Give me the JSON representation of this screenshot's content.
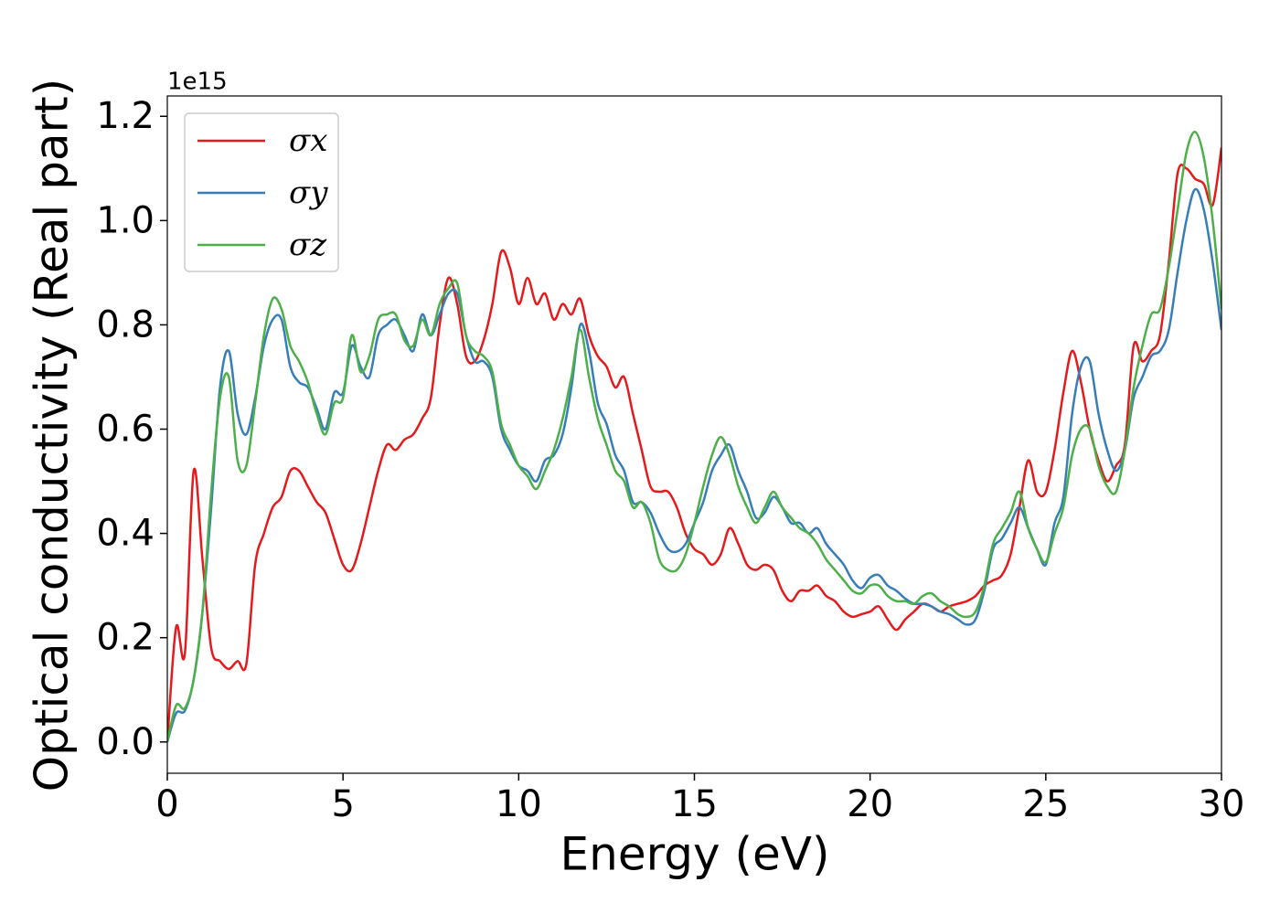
{
  "chart_data": {
    "type": "line",
    "xlabel": "Energy (eV)",
    "ylabel": "Optical conductivity (Real part)",
    "y_offset_label": "1e15",
    "xlim": [
      0,
      30
    ],
    "ylim": [
      -0.06,
      1.239
    ],
    "xticks": [
      0,
      5,
      10,
      15,
      20,
      25,
      30
    ],
    "yticks": [
      {
        "value": 0,
        "label": "0.0"
      },
      0.2,
      0.4,
      0.6,
      0.8,
      {
        "value": 1,
        "label": "1.0"
      },
      1.2
    ],
    "grid": false,
    "legend": "upper left",
    "x": [
      0,
      0.25,
      0.5,
      0.75,
      1,
      1.25,
      1.5,
      1.75,
      2,
      2.25,
      2.5,
      2.75,
      3,
      3.25,
      3.5,
      3.75,
      4,
      4.25,
      4.5,
      4.75,
      5,
      5.25,
      5.5,
      5.75,
      6,
      6.25,
      6.5,
      6.75,
      7,
      7.25,
      7.5,
      7.75,
      8,
      8.25,
      8.5,
      8.75,
      9,
      9.25,
      9.5,
      9.75,
      10,
      10.25,
      10.5,
      10.75,
      11,
      11.25,
      11.5,
      11.75,
      12,
      12.25,
      12.5,
      12.75,
      13,
      13.25,
      13.5,
      13.75,
      14,
      14.25,
      14.5,
      14.75,
      15,
      15.25,
      15.5,
      15.75,
      16,
      16.25,
      16.5,
      16.75,
      17,
      17.25,
      17.5,
      17.75,
      18,
      18.25,
      18.5,
      18.75,
      19,
      19.25,
      19.5,
      19.75,
      20,
      20.25,
      20.5,
      20.75,
      21,
      21.25,
      21.5,
      21.75,
      22,
      22.25,
      22.5,
      22.75,
      23,
      23.25,
      23.5,
      23.75,
      24,
      24.25,
      24.5,
      24.75,
      25,
      25.25,
      25.5,
      25.75,
      26,
      26.25,
      26.5,
      26.75,
      27,
      27.25,
      27.5,
      27.75,
      28,
      28.25,
      28.5,
      28.75,
      29,
      29.25,
      29.5,
      29.75,
      30
    ],
    "series": [
      {
        "name": "σx",
        "color": "#e41a1c",
        "values": [
          0,
          0.22,
          0.17,
          0.52,
          0.35,
          0.18,
          0.155,
          0.14,
          0.155,
          0.15,
          0.34,
          0.4,
          0.45,
          0.47,
          0.52,
          0.52,
          0.49,
          0.46,
          0.44,
          0.39,
          0.34,
          0.33,
          0.38,
          0.45,
          0.52,
          0.57,
          0.56,
          0.58,
          0.59,
          0.62,
          0.66,
          0.8,
          0.89,
          0.84,
          0.74,
          0.73,
          0.77,
          0.84,
          0.94,
          0.91,
          0.84,
          0.89,
          0.84,
          0.86,
          0.81,
          0.84,
          0.82,
          0.85,
          0.78,
          0.74,
          0.72,
          0.68,
          0.7,
          0.63,
          0.56,
          0.49,
          0.48,
          0.48,
          0.45,
          0.4,
          0.37,
          0.36,
          0.34,
          0.36,
          0.41,
          0.38,
          0.34,
          0.33,
          0.34,
          0.33,
          0.29,
          0.27,
          0.29,
          0.29,
          0.3,
          0.28,
          0.27,
          0.25,
          0.24,
          0.245,
          0.25,
          0.26,
          0.235,
          0.215,
          0.235,
          0.25,
          0.265,
          0.26,
          0.25,
          0.26,
          0.265,
          0.27,
          0.28,
          0.3,
          0.31,
          0.32,
          0.36,
          0.45,
          0.54,
          0.48,
          0.48,
          0.56,
          0.67,
          0.75,
          0.69,
          0.6,
          0.54,
          0.5,
          0.53,
          0.57,
          0.76,
          0.73,
          0.75,
          0.78,
          0.92,
          1.09,
          1.1,
          1.08,
          1.07,
          1.03,
          1.14
        ]
      },
      {
        "name": "σy",
        "color": "#377eb8",
        "values": [
          0,
          0.055,
          0.06,
          0.12,
          0.25,
          0.45,
          0.68,
          0.75,
          0.63,
          0.59,
          0.66,
          0.76,
          0.81,
          0.81,
          0.72,
          0.69,
          0.68,
          0.64,
          0.6,
          0.67,
          0.67,
          0.76,
          0.72,
          0.7,
          0.78,
          0.8,
          0.81,
          0.78,
          0.75,
          0.82,
          0.78,
          0.82,
          0.86,
          0.86,
          0.78,
          0.73,
          0.73,
          0.7,
          0.6,
          0.56,
          0.53,
          0.52,
          0.5,
          0.54,
          0.55,
          0.59,
          0.68,
          0.8,
          0.75,
          0.65,
          0.61,
          0.55,
          0.52,
          0.46,
          0.46,
          0.44,
          0.4,
          0.37,
          0.365,
          0.38,
          0.42,
          0.46,
          0.52,
          0.55,
          0.57,
          0.52,
          0.48,
          0.43,
          0.44,
          0.47,
          0.45,
          0.42,
          0.42,
          0.4,
          0.41,
          0.38,
          0.36,
          0.34,
          0.31,
          0.295,
          0.315,
          0.32,
          0.3,
          0.29,
          0.275,
          0.265,
          0.265,
          0.26,
          0.25,
          0.245,
          0.235,
          0.225,
          0.235,
          0.29,
          0.37,
          0.39,
          0.42,
          0.45,
          0.41,
          0.37,
          0.34,
          0.42,
          0.47,
          0.63,
          0.72,
          0.73,
          0.63,
          0.56,
          0.52,
          0.56,
          0.66,
          0.7,
          0.74,
          0.75,
          0.79,
          0.9,
          1,
          1.06,
          1.02,
          0.92,
          0.79
        ]
      },
      {
        "name": "σz",
        "color": "#4daf4a",
        "values": [
          0,
          0.07,
          0.065,
          0.12,
          0.25,
          0.48,
          0.66,
          0.7,
          0.54,
          0.53,
          0.65,
          0.78,
          0.85,
          0.83,
          0.76,
          0.73,
          0.69,
          0.63,
          0.59,
          0.65,
          0.66,
          0.78,
          0.71,
          0.74,
          0.81,
          0.82,
          0.82,
          0.77,
          0.76,
          0.81,
          0.78,
          0.84,
          0.87,
          0.88,
          0.78,
          0.75,
          0.74,
          0.71,
          0.61,
          0.57,
          0.53,
          0.51,
          0.485,
          0.52,
          0.56,
          0.62,
          0.7,
          0.79,
          0.7,
          0.62,
          0.57,
          0.52,
          0.5,
          0.45,
          0.46,
          0.42,
          0.35,
          0.33,
          0.33,
          0.36,
          0.42,
          0.49,
          0.55,
          0.585,
          0.55,
          0.49,
          0.45,
          0.42,
          0.45,
          0.48,
          0.45,
          0.43,
          0.41,
          0.4,
          0.38,
          0.35,
          0.33,
          0.31,
          0.29,
          0.285,
          0.3,
          0.3,
          0.28,
          0.27,
          0.27,
          0.265,
          0.28,
          0.285,
          0.27,
          0.26,
          0.245,
          0.24,
          0.25,
          0.3,
          0.38,
          0.41,
          0.44,
          0.48,
          0.41,
          0.37,
          0.345,
          0.4,
          0.45,
          0.55,
          0.6,
          0.6,
          0.53,
          0.49,
          0.48,
          0.56,
          0.68,
          0.76,
          0.82,
          0.83,
          0.91,
          1.02,
          1.13,
          1.17,
          1.12,
          1,
          0.83
        ]
      }
    ]
  }
}
